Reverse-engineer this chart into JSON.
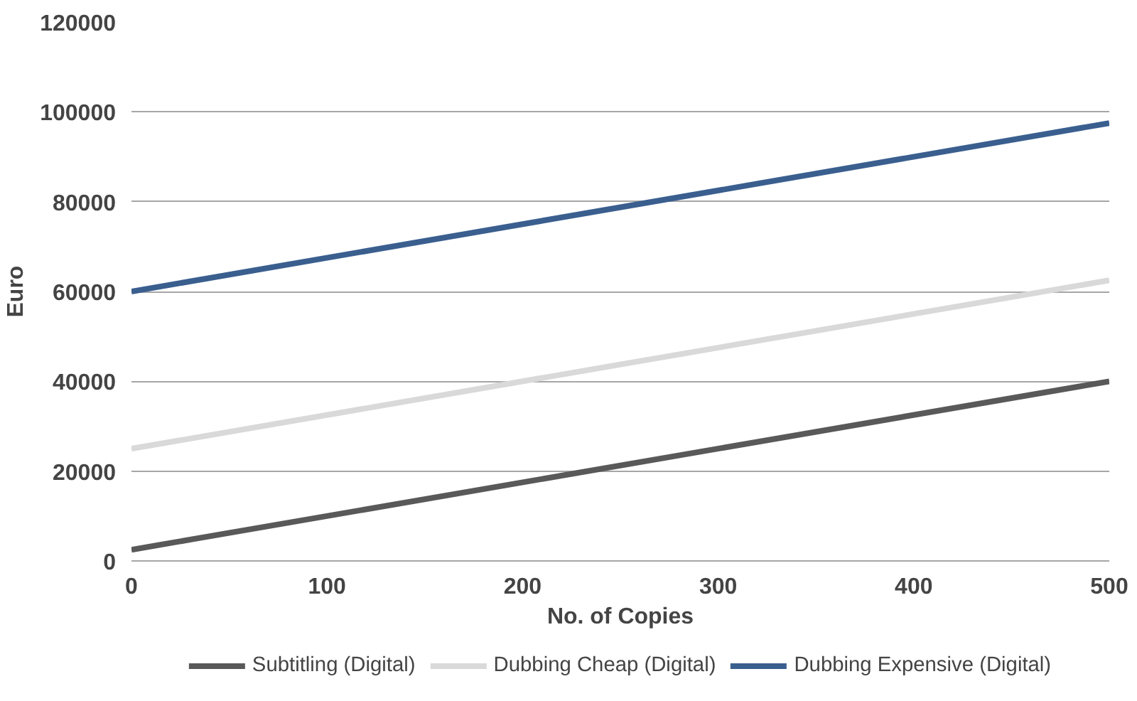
{
  "chart_data": {
    "type": "line",
    "xlabel": "No. of Copies",
    "ylabel": "Euro",
    "x": [
      0,
      500
    ],
    "series": [
      {
        "name": "Subtitling (Digital)",
        "color": "#595959",
        "values": [
          2500,
          40000
        ]
      },
      {
        "name": "Dubbing Cheap (Digital)",
        "color": "#d9d9d9",
        "values": [
          25000,
          62500
        ]
      },
      {
        "name": "Dubbing Expensive (Digital)",
        "color": "#3a5f8f",
        "values": [
          60000,
          97500
        ]
      }
    ],
    "xlim": [
      0,
      500
    ],
    "xticks": [
      0,
      100,
      200,
      300,
      400,
      500
    ],
    "ylim": [
      0,
      120000
    ],
    "yticks": [
      0,
      20000,
      40000,
      60000,
      80000,
      100000,
      120000
    ],
    "grid": "y",
    "legend": "bottom",
    "marker": "none",
    "line_style": "solid"
  }
}
